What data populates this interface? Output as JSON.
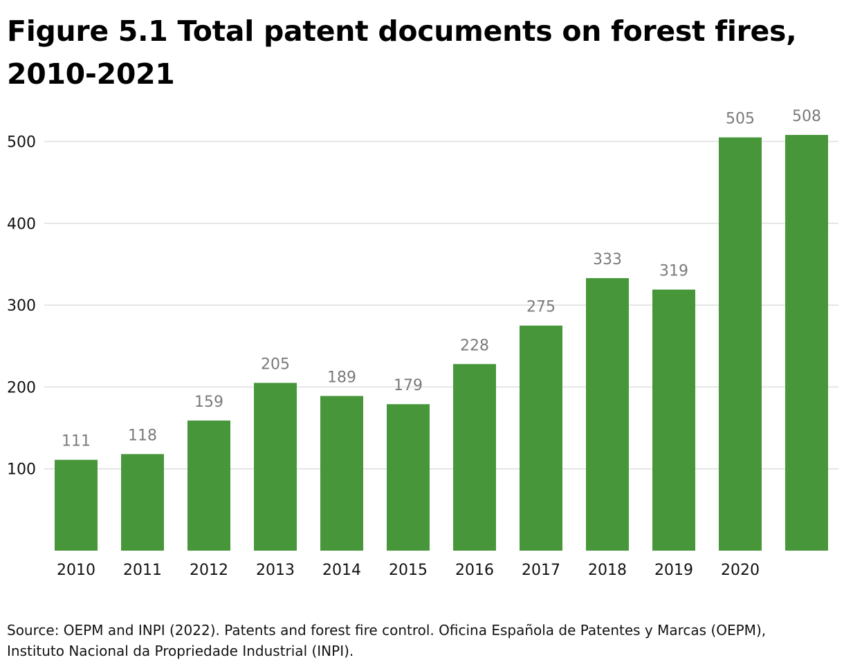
{
  "title": "Figure 5.1 Total patent documents on forest fires, 2010-2021",
  "source": "Source: OEPM and INPI (2022). Patents and forest fire control. Oficina Española de Patentes y Marcas (OEPM), Instituto Nacional da Propriedade Industrial (INPI).",
  "chart_data": {
    "type": "bar",
    "categories": [
      "2010",
      "2011",
      "2012",
      "2013",
      "2014",
      "2015",
      "2016",
      "2017",
      "2018",
      "2019",
      "2020",
      ""
    ],
    "values": [
      111,
      118,
      159,
      205,
      189,
      179,
      228,
      275,
      333,
      319,
      505,
      508
    ],
    "ylim": [
      0,
      540
    ],
    "yticks": [
      100,
      200,
      300,
      400,
      500
    ],
    "grid": true,
    "bar_color": "#47973a",
    "label_color": "#7a7a7a",
    "gridline_color": "#dddddd"
  }
}
